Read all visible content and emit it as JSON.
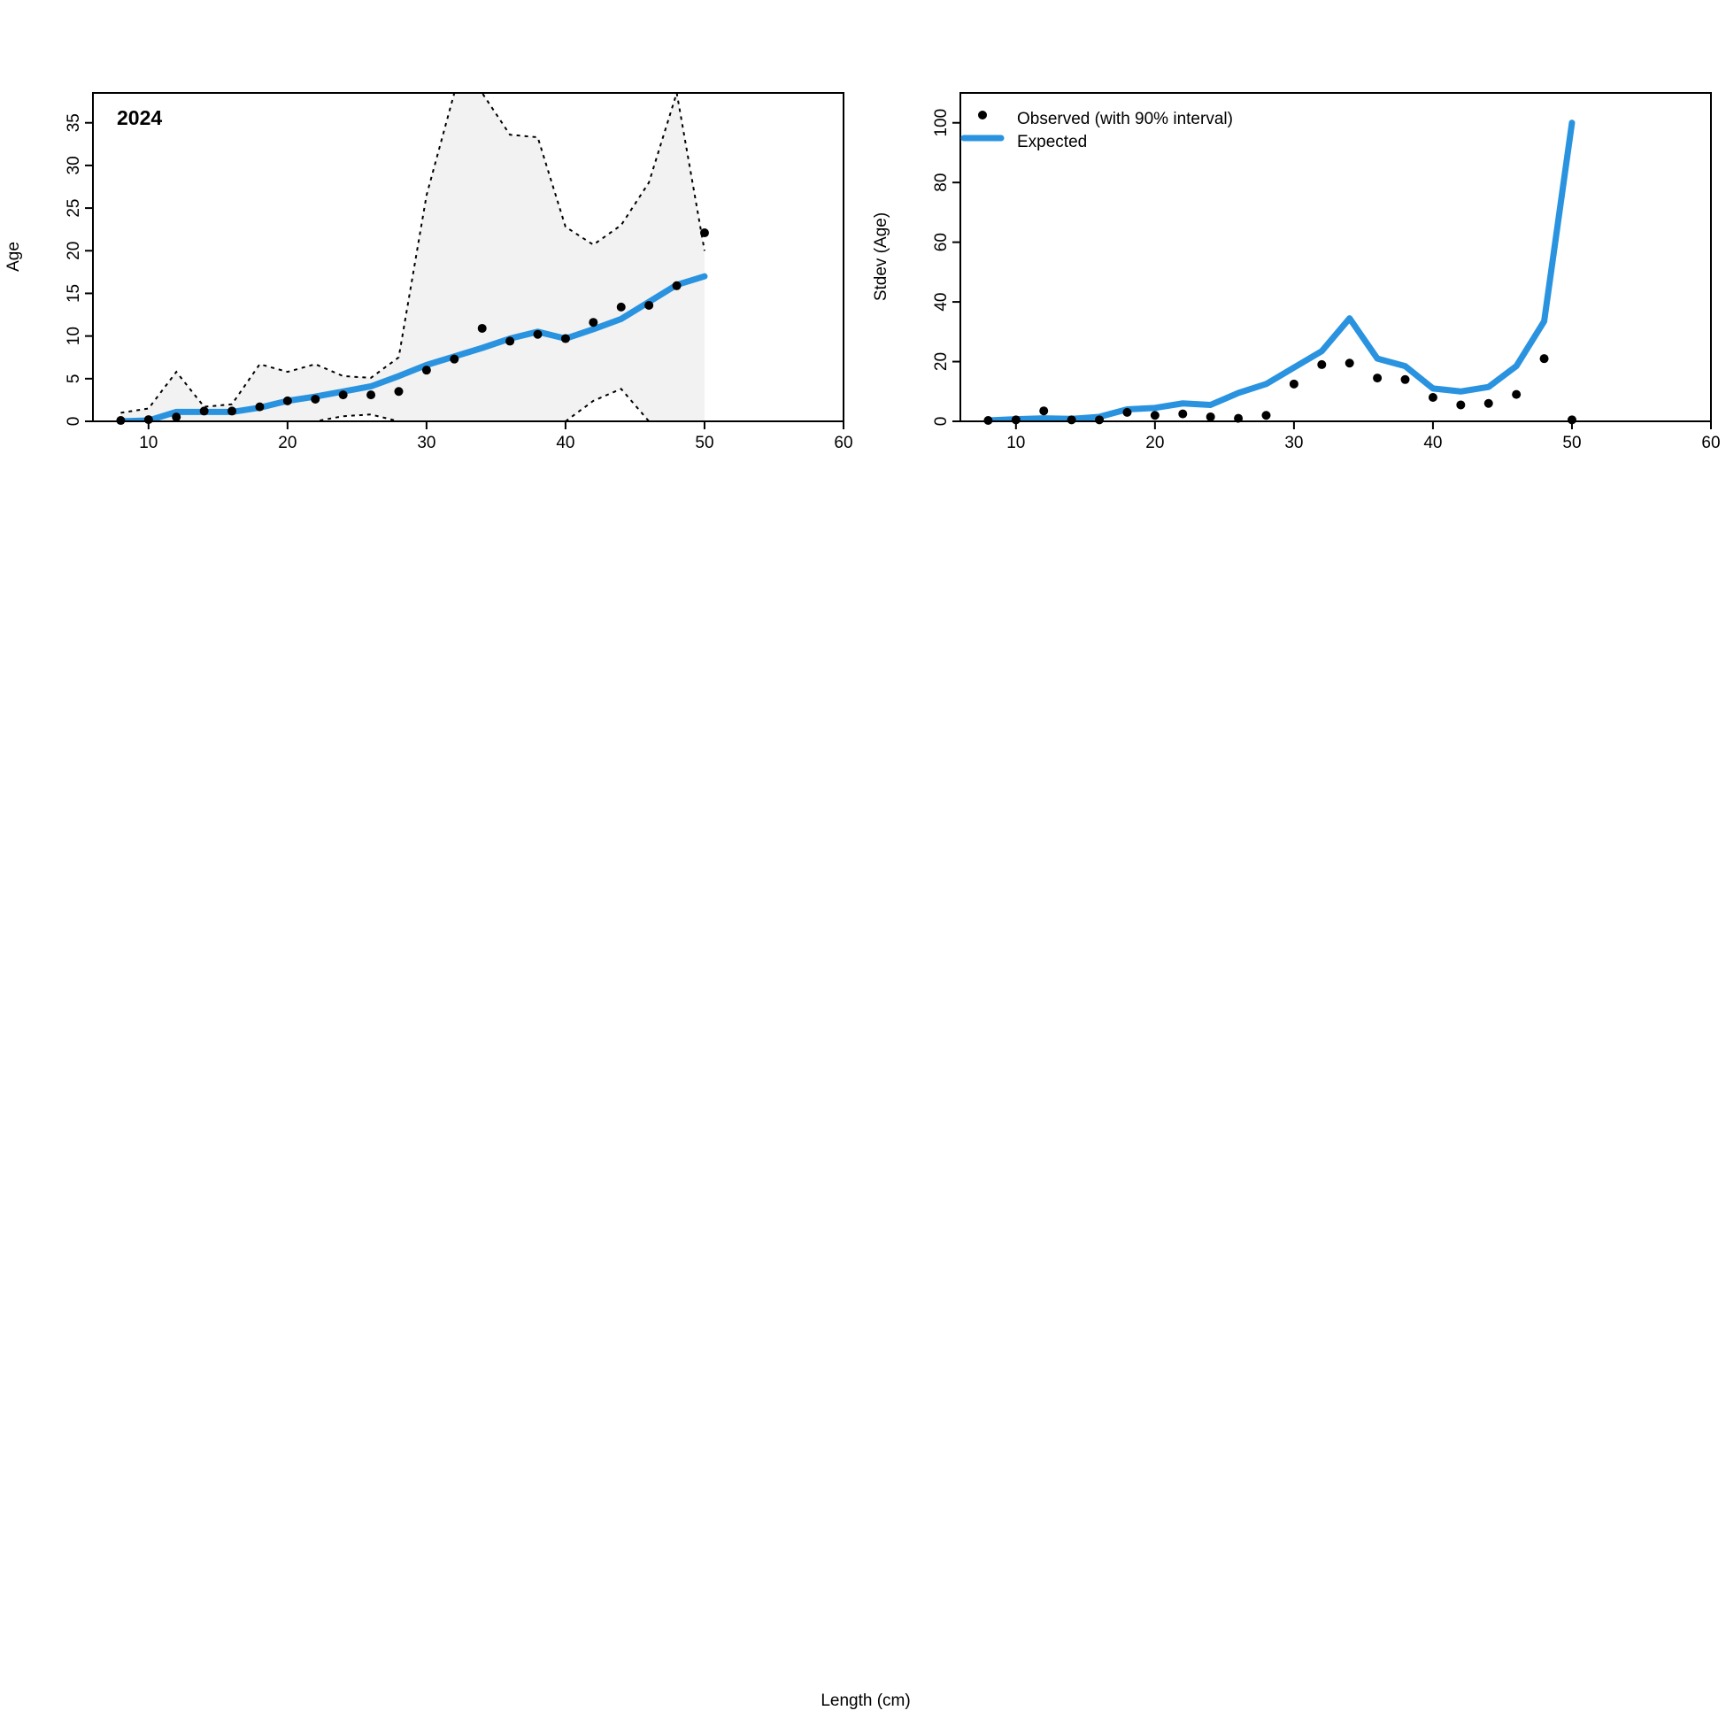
{
  "shared_xlabel": "Length (cm)",
  "chart_data": [
    {
      "type": "line",
      "panel_label": "2024",
      "ylabel": "Age",
      "xlim": [
        6,
        60
      ],
      "ylim": [
        0,
        38.5
      ],
      "x_ticks": [
        10,
        20,
        30,
        40,
        50,
        60
      ],
      "y_ticks": [
        0,
        5,
        10,
        15,
        20,
        25,
        30,
        35
      ],
      "series": [
        {
          "kind": "points",
          "x": [
            8,
            10,
            12,
            14,
            16,
            18,
            20,
            22,
            24,
            26,
            28,
            30,
            32,
            34,
            36,
            38,
            40,
            42,
            44,
            46,
            48,
            50
          ],
          "y": [
            0.1,
            0.2,
            0.5,
            1.2,
            1.2,
            1.7,
            2.4,
            2.6,
            3.1,
            3.1,
            3.5,
            6.0,
            7.3,
            10.9,
            9.4,
            10.2,
            9.7,
            11.6,
            13.4,
            13.6,
            15.9,
            22.1
          ]
        },
        {
          "kind": "line",
          "x": [
            8,
            10,
            12,
            14,
            16,
            18,
            20,
            22,
            24,
            26,
            28,
            30,
            32,
            34,
            36,
            38,
            40,
            42,
            44,
            46,
            48,
            50
          ],
          "y": [
            0.0,
            0.1,
            1.1,
            1.1,
            1.1,
            1.6,
            2.4,
            2.9,
            3.5,
            4.1,
            5.3,
            6.6,
            7.6,
            8.6,
            9.7,
            10.5,
            9.7,
            10.8,
            12.0,
            14.0,
            16.0,
            17.0
          ]
        },
        {
          "kind": "interval",
          "x": [
            8,
            10,
            12,
            14,
            16,
            18,
            20,
            22,
            24,
            26,
            28,
            30,
            32,
            34,
            36,
            38,
            40,
            42,
            44,
            46,
            48,
            50
          ],
          "upper": [
            1.0,
            1.5,
            5.8,
            1.7,
            2.0,
            6.7,
            5.8,
            6.7,
            5.3,
            5.1,
            7.5,
            26.5,
            38.5,
            38.5,
            33.6,
            33.3,
            22.8,
            20.7,
            23.0,
            28.0,
            38.5,
            20.0
          ],
          "lower": [
            0,
            0,
            0,
            0,
            0,
            0,
            0,
            0,
            0.6,
            0.8,
            0,
            0,
            0,
            0,
            0,
            0,
            0,
            2.4,
            3.8,
            0,
            0,
            0
          ]
        }
      ]
    },
    {
      "type": "line",
      "ylabel": "Stdev (Age)",
      "xlim": [
        6,
        60
      ],
      "ylim": [
        0,
        110
      ],
      "x_ticks": [
        10,
        20,
        30,
        40,
        50,
        60
      ],
      "y_ticks": [
        0,
        20,
        40,
        60,
        80,
        100
      ],
      "legend": {
        "placement": "top-left",
        "entries": [
          {
            "label": "Observed (with 90% interval)",
            "symbol": "point"
          },
          {
            "label": "Expected",
            "symbol": "line"
          }
        ]
      },
      "series": [
        {
          "kind": "points",
          "x": [
            8,
            10,
            12,
            14,
            16,
            18,
            20,
            22,
            24,
            26,
            28,
            30,
            32,
            34,
            36,
            38,
            40,
            42,
            44,
            46,
            48,
            50
          ],
          "y": [
            0.3,
            0.5,
            3.5,
            0.5,
            0.5,
            3.0,
            2.0,
            2.5,
            1.5,
            1.0,
            2.0,
            12.5,
            19.0,
            19.5,
            14.5,
            14.0,
            8.0,
            5.5,
            6.0,
            9.0,
            21.0,
            0.5
          ]
        },
        {
          "kind": "line",
          "x": [
            8,
            10,
            12,
            14,
            16,
            18,
            20,
            22,
            24,
            26,
            28,
            30,
            32,
            34,
            36,
            38,
            40,
            42,
            44,
            46,
            48,
            50
          ],
          "y": [
            0.3,
            0.7,
            1.0,
            0.8,
            1.5,
            4.0,
            4.5,
            6.0,
            5.5,
            9.5,
            12.5,
            18.0,
            23.5,
            34.5,
            21.0,
            18.5,
            11.0,
            10.0,
            11.5,
            18.5,
            33.5,
            100.0
          ]
        }
      ]
    }
  ],
  "colors": {
    "expected_line": "#2a93e0",
    "interval_fill": "#f2f2f2",
    "points": "#000000"
  }
}
